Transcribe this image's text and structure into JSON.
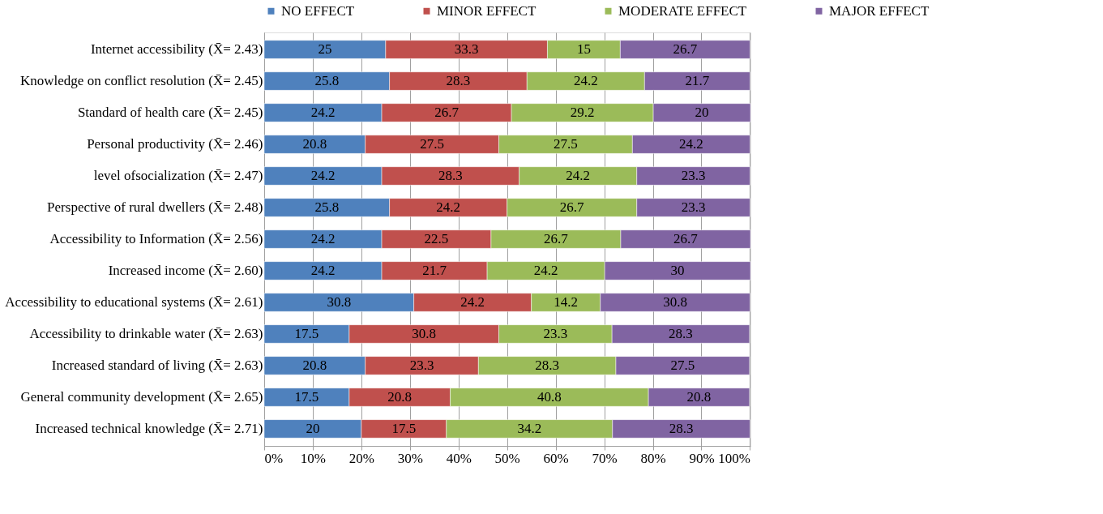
{
  "chart_data": {
    "type": "bar",
    "orientation": "horizontal",
    "stacked": true,
    "data_labels": true,
    "grid": "x",
    "legend": "top",
    "categories": [
      "Internet accessibility (X̄= 2.43)",
      "Knowledge on conflict resolution (X̄= 2.45)",
      "Standard of health care (X̄= 2.45)",
      "Personal productivity (X̄= 2.46)",
      "level ofsocialization (X̄= 2.47)",
      "Perspective of rural dwellers (X̄= 2.48)",
      "Accessibility to Information (X̄= 2.56)",
      "Increased income (X̄= 2.60)",
      "Accessibility to educational systems (X̄= 2.61)",
      "Accessibility to drinkable water (X̄= 2.63)",
      "Increased standard of living (X̄= 2.63)",
      "General community development (X̄= 2.65)",
      "Increased technical knowledge (X̄= 2.71)"
    ],
    "series": [
      {
        "name": "NO EFFECT",
        "color": "#4f81bd",
        "values": [
          25,
          25.8,
          24.2,
          20.8,
          24.2,
          25.8,
          24.2,
          24.2,
          30.8,
          17.5,
          20.8,
          17.5,
          20
        ]
      },
      {
        "name": "MINOR EFFECT",
        "color": "#c0504d",
        "values": [
          33.3,
          28.3,
          26.7,
          27.5,
          28.3,
          24.2,
          22.5,
          21.7,
          24.2,
          30.8,
          23.3,
          20.8,
          17.5
        ]
      },
      {
        "name": "MODERATE EFFECT",
        "color": "#9bbb59",
        "values": [
          15,
          24.2,
          29.2,
          27.5,
          24.2,
          26.7,
          26.7,
          24.2,
          14.2,
          23.3,
          28.3,
          40.8,
          34.2
        ]
      },
      {
        "name": "MAJOR EFFECT",
        "color": "#8064a2",
        "values": [
          26.7,
          21.7,
          20,
          24.2,
          23.3,
          23.3,
          26.7,
          30,
          30.8,
          28.3,
          27.5,
          20.8,
          28.3
        ]
      }
    ],
    "xlim": [
      0,
      100.1
    ],
    "xticks": [
      {
        "value": 0,
        "label": "0%"
      },
      {
        "value": 10,
        "label": "10%"
      },
      {
        "value": 20,
        "label": "20%"
      },
      {
        "value": 30,
        "label": "30%"
      },
      {
        "value": 40,
        "label": "40%"
      },
      {
        "value": 50,
        "label": "50%"
      },
      {
        "value": 60,
        "label": "60%"
      },
      {
        "value": 70,
        "label": "70%"
      },
      {
        "value": 80,
        "label": "80%"
      },
      {
        "value": 90,
        "label": "90%"
      },
      {
        "value": 100,
        "label": "100%"
      }
    ]
  }
}
